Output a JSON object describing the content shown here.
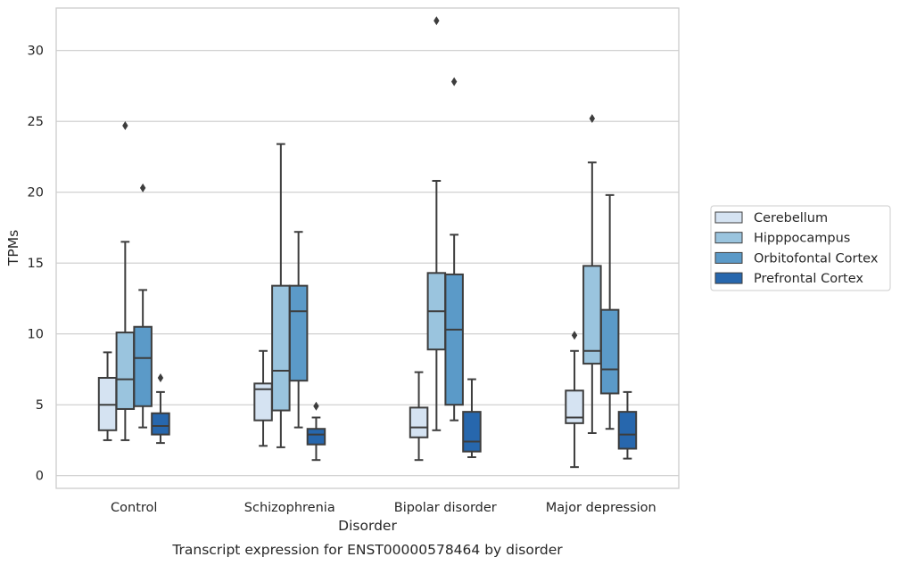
{
  "chart_data": {
    "type": "boxplot",
    "title": "",
    "caption": "Transcript expression for ENST00000578464 by disorder",
    "xlabel": "Disorder",
    "ylabel": "TPMs",
    "ylim": [
      -0.9,
      33.0
    ],
    "yticks": [
      0,
      5,
      10,
      15,
      20,
      25,
      30
    ],
    "grid": "horizontal",
    "legend_position": "right",
    "categories": [
      "Control",
      "Schizophrenia",
      "Bipolar disorder",
      "Major depression"
    ],
    "series": [
      {
        "name": "Cerebellum",
        "color": "#d5e3f2",
        "boxes": [
          {
            "whislo": 2.5,
            "q1": 3.2,
            "med": 5.0,
            "q3": 6.9,
            "whishi": 8.7,
            "fliers": []
          },
          {
            "whislo": 2.1,
            "q1": 3.9,
            "med": 6.1,
            "q3": 6.5,
            "whishi": 8.8,
            "fliers": []
          },
          {
            "whislo": 1.1,
            "q1": 2.7,
            "med": 3.4,
            "q3": 4.8,
            "whishi": 7.3,
            "fliers": []
          },
          {
            "whislo": 0.6,
            "q1": 3.7,
            "med": 4.1,
            "q3": 6.0,
            "whishi": 8.8,
            "fliers": [
              9.9
            ]
          }
        ]
      },
      {
        "name": "Hipppocampus",
        "color": "#9ac4de",
        "boxes": [
          {
            "whislo": 2.5,
            "q1": 4.7,
            "med": 6.8,
            "q3": 10.1,
            "whishi": 16.5,
            "fliers": [
              24.7
            ]
          },
          {
            "whislo": 2.0,
            "q1": 4.6,
            "med": 7.4,
            "q3": 13.4,
            "whishi": 23.4,
            "fliers": []
          },
          {
            "whislo": 3.2,
            "q1": 8.9,
            "med": 11.6,
            "q3": 14.3,
            "whishi": 20.8,
            "fliers": [
              32.1
            ]
          },
          {
            "whislo": 3.0,
            "q1": 7.9,
            "med": 8.8,
            "q3": 14.8,
            "whishi": 22.1,
            "fliers": [
              25.2
            ]
          }
        ]
      },
      {
        "name": "Orbitofontal Cortex",
        "color": "#5b9ac8",
        "boxes": [
          {
            "whislo": 3.4,
            "q1": 4.9,
            "med": 8.3,
            "q3": 10.5,
            "whishi": 13.1,
            "fliers": [
              20.3
            ]
          },
          {
            "whislo": 3.4,
            "q1": 6.7,
            "med": 11.6,
            "q3": 13.4,
            "whishi": 17.2,
            "fliers": []
          },
          {
            "whislo": 3.9,
            "q1": 5.0,
            "med": 10.3,
            "q3": 14.2,
            "whishi": 17.0,
            "fliers": [
              27.8
            ]
          },
          {
            "whislo": 3.3,
            "q1": 5.8,
            "med": 7.5,
            "q3": 11.7,
            "whishi": 19.8,
            "fliers": []
          }
        ]
      },
      {
        "name": "Prefrontal Cortex",
        "color": "#2767ad",
        "boxes": [
          {
            "whislo": 2.3,
            "q1": 2.9,
            "med": 3.5,
            "q3": 4.4,
            "whishi": 5.9,
            "fliers": [
              6.9
            ]
          },
          {
            "whislo": 1.1,
            "q1": 2.2,
            "med": 2.9,
            "q3": 3.3,
            "whishi": 4.1,
            "fliers": [
              4.9
            ]
          },
          {
            "whislo": 1.3,
            "q1": 1.7,
            "med": 2.4,
            "q3": 4.5,
            "whishi": 6.8,
            "fliers": []
          },
          {
            "whislo": 1.2,
            "q1": 1.9,
            "med": 2.9,
            "q3": 4.5,
            "whishi": 5.9,
            "fliers": []
          }
        ]
      }
    ]
  }
}
